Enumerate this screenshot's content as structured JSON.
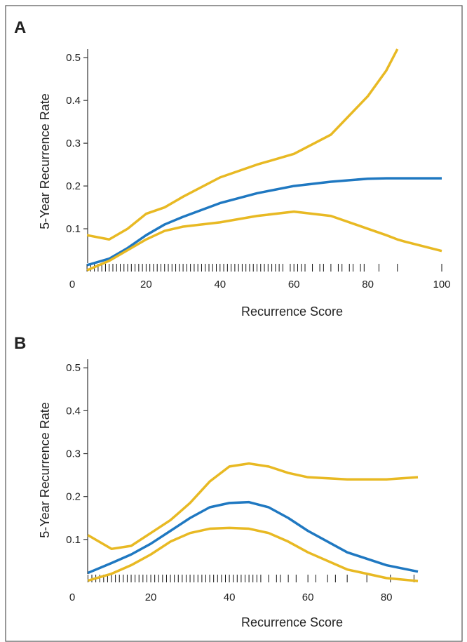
{
  "chart_data": [
    {
      "type": "line",
      "panel": "A",
      "xlabel": "Recurrence Score",
      "ylabel": "5-Year Recurrence Rate",
      "x": [
        4,
        10,
        15,
        20,
        25,
        30,
        40,
        50,
        60,
        70,
        80,
        85,
        88,
        90,
        100
      ],
      "series": [
        {
          "color": "#e8b923",
          "values": [
            0.085,
            0.075,
            0.1,
            0.135,
            0.15,
            0.175,
            0.22,
            0.25,
            0.275,
            0.32,
            0.41,
            0.47,
            0.52,
            null,
            null
          ]
        },
        {
          "color": "#1f78c1",
          "values": [
            0.015,
            0.03,
            0.055,
            0.085,
            0.11,
            0.128,
            0.16,
            0.183,
            0.2,
            0.21,
            0.217,
            0.218,
            0.218,
            0.218,
            0.218
          ]
        },
        {
          "color": "#e8b923",
          "values": [
            0.003,
            0.025,
            0.05,
            0.075,
            0.095,
            0.105,
            0.115,
            0.13,
            0.14,
            0.13,
            0.1,
            0.085,
            0.075,
            0.07,
            0.048
          ]
        }
      ],
      "rug": [
        4,
        5,
        6,
        7,
        8,
        9,
        10,
        11,
        12,
        13,
        14,
        15,
        16,
        17,
        18,
        19,
        20,
        21,
        22,
        23,
        24,
        25,
        26,
        27,
        28,
        29,
        30,
        31,
        32,
        33,
        34,
        35,
        36,
        37,
        38,
        39,
        40,
        41,
        42,
        43,
        44,
        45,
        46,
        47,
        48,
        49,
        50,
        51,
        52,
        53,
        54,
        55,
        56,
        57,
        59,
        60,
        61,
        62,
        63,
        65,
        67,
        68,
        70,
        72,
        73,
        75,
        76,
        78,
        79,
        83,
        88,
        100
      ],
      "xlim": [
        0,
        100
      ],
      "ylim": [
        0,
        0.52
      ],
      "xticks": [
        0,
        20,
        40,
        60,
        80,
        100
      ],
      "yticks": [
        0.1,
        0.2,
        0.3,
        0.4,
        0.5
      ]
    },
    {
      "type": "line",
      "panel": "B",
      "xlabel": "Recurrence Score",
      "ylabel": "5-Year Recurrence Rate",
      "x": [
        4,
        10,
        15,
        20,
        25,
        30,
        35,
        40,
        45,
        50,
        55,
        60,
        70,
        80,
        88
      ],
      "series": [
        {
          "color": "#e8b923",
          "values": [
            0.11,
            0.078,
            0.085,
            0.115,
            0.145,
            0.185,
            0.235,
            0.27,
            0.277,
            0.27,
            0.255,
            0.245,
            0.24,
            0.24,
            0.245
          ]
        },
        {
          "color": "#1f78c1",
          "values": [
            0.022,
            0.045,
            0.065,
            0.09,
            0.12,
            0.15,
            0.175,
            0.185,
            0.187,
            0.175,
            0.15,
            0.12,
            0.07,
            0.04,
            0.025
          ]
        },
        {
          "color": "#e8b923",
          "values": [
            0.004,
            0.02,
            0.04,
            0.065,
            0.095,
            0.115,
            0.125,
            0.127,
            0.125,
            0.115,
            0.095,
            0.07,
            0.03,
            0.01,
            0.003
          ]
        }
      ],
      "rug": [
        4,
        5,
        6,
        7,
        8,
        9,
        10,
        11,
        12,
        13,
        14,
        15,
        16,
        17,
        18,
        19,
        20,
        21,
        22,
        23,
        24,
        25,
        26,
        27,
        28,
        29,
        30,
        31,
        32,
        33,
        34,
        35,
        36,
        37,
        38,
        39,
        40,
        41,
        42,
        43,
        44,
        45,
        46,
        47,
        48,
        50,
        52,
        53,
        55,
        57,
        60,
        62,
        65,
        67,
        70,
        75,
        81,
        87
      ],
      "xlim": [
        0,
        88
      ],
      "ylim": [
        0,
        0.52
      ],
      "xticks": [
        0,
        20,
        40,
        60,
        80
      ],
      "yticks": [
        0.1,
        0.2,
        0.3,
        0.4,
        0.5
      ]
    }
  ]
}
